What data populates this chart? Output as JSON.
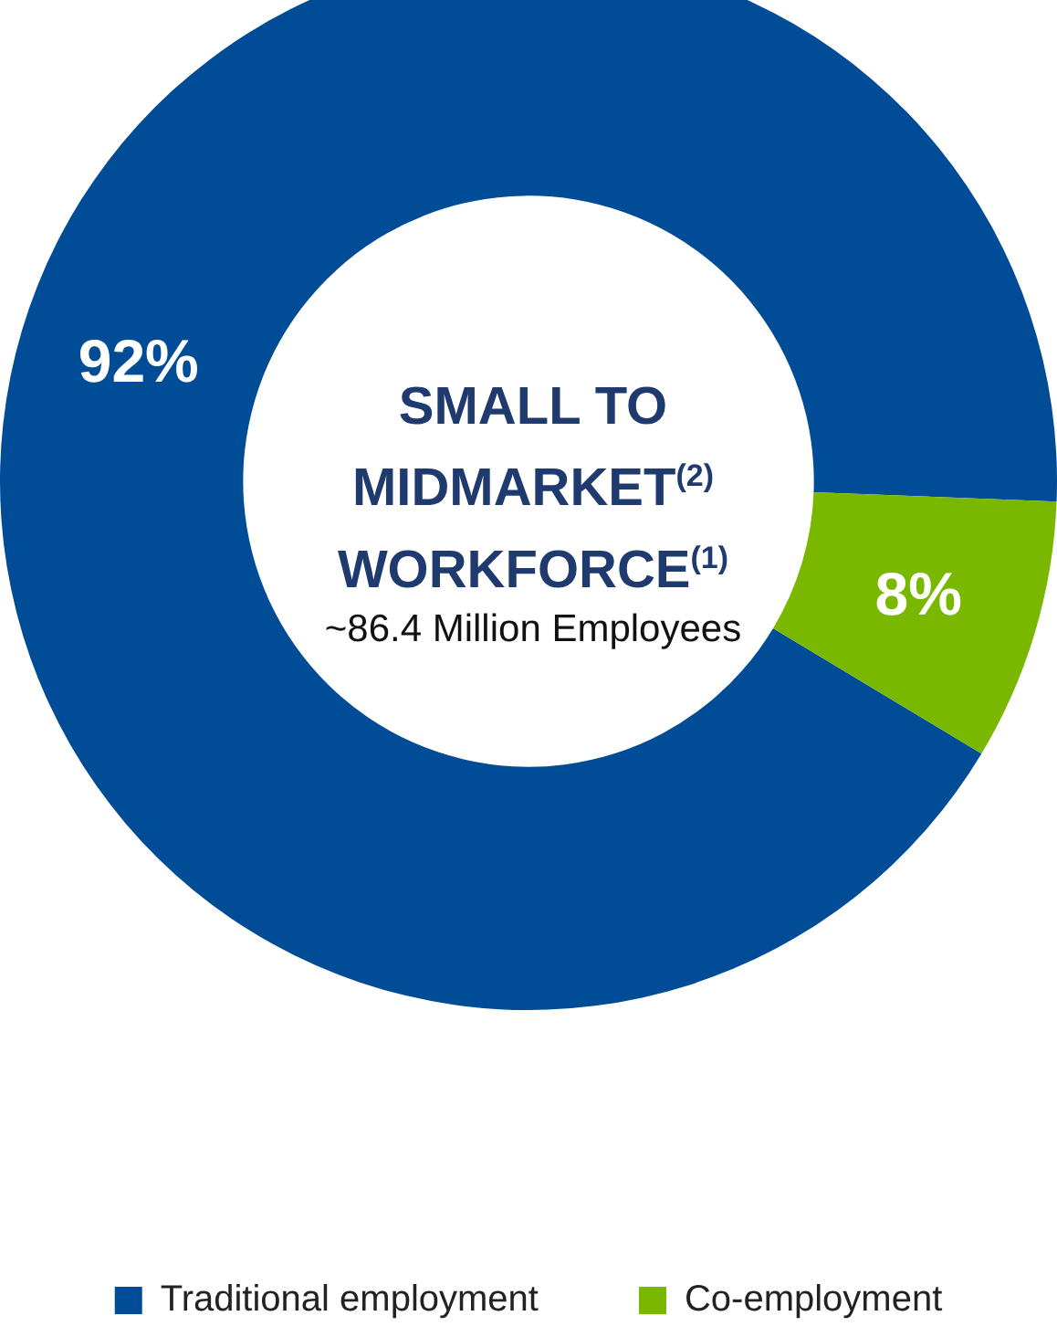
{
  "chart_data": {
    "type": "donut",
    "title": "SMALL TO MIDMARKET$^{(2)}$ WORKFORCE$^{(1)}$",
    "subtitle": "~86.4 Million Employees",
    "categories": [
      "Traditional employment",
      "Co-employment"
    ],
    "values": [
      92,
      8
    ],
    "colors": [
      "#004c97",
      "#7ab800"
    ],
    "value_labels": [
      "92%",
      "8%"
    ],
    "legend": "bottom"
  }
}
